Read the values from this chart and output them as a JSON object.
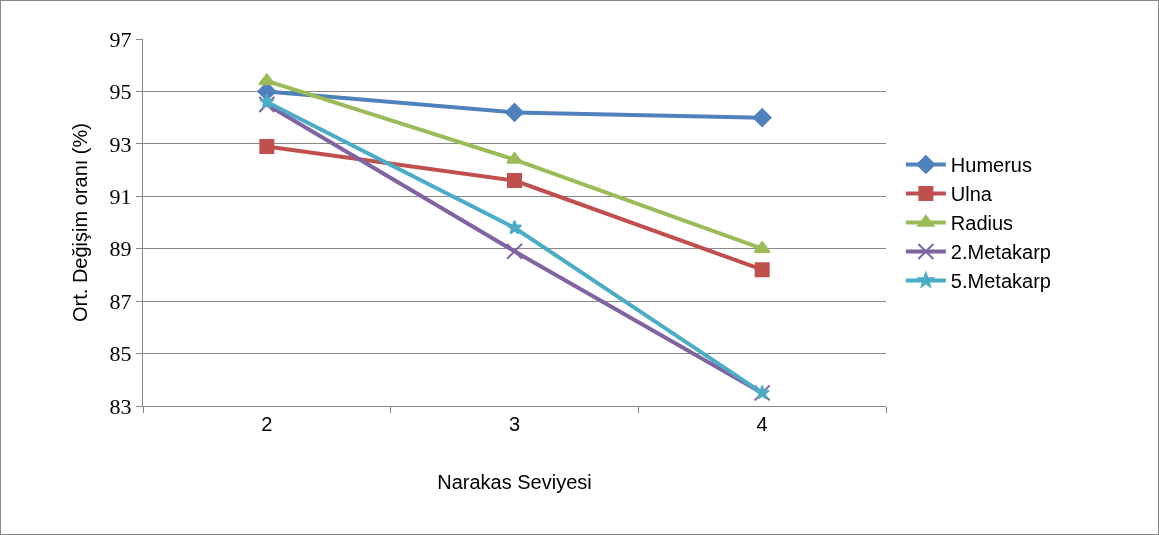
{
  "chart_data": {
    "type": "line",
    "xlabel": "Narakas Seviyesi",
    "ylabel": "Ort. Değişim oranı (%)",
    "categories": [
      "2",
      "3",
      "4"
    ],
    "ylim": [
      83,
      97
    ],
    "yticks": [
      83,
      85,
      87,
      89,
      91,
      93,
      95,
      97
    ],
    "grid": "y",
    "legend": "right",
    "series": [
      {
        "name": "Humerus",
        "color": "#4f81bd",
        "marker": "diamond",
        "values": [
          95.0,
          94.2,
          94.0
        ]
      },
      {
        "name": "Ulna",
        "color": "#c0504d",
        "marker": "square",
        "values": [
          92.9,
          91.6,
          88.2
        ]
      },
      {
        "name": "Radius",
        "color": "#9bbb59",
        "marker": "triangle",
        "values": [
          95.4,
          92.4,
          89.0
        ]
      },
      {
        "name": "2.Metakarp",
        "color": "#8064a2",
        "marker": "cross",
        "values": [
          94.5,
          88.9,
          83.5
        ]
      },
      {
        "name": "5.Metakarp",
        "color": "#4bacc6",
        "marker": "star",
        "values": [
          94.6,
          89.8,
          83.5
        ]
      }
    ]
  }
}
